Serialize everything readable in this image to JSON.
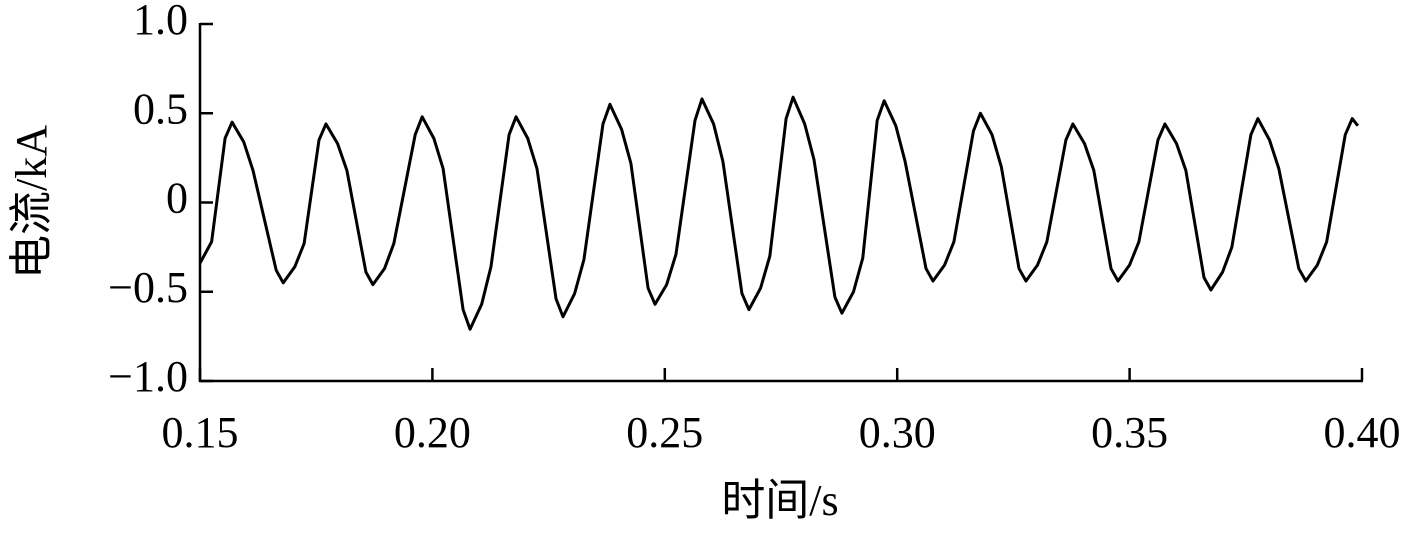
{
  "chart_data": {
    "type": "line",
    "x_label": "时间/s",
    "y_label": "电流/kA",
    "color": "#000000",
    "xlim": [
      0.15,
      0.4
    ],
    "xticks": [
      0.15,
      {
        "value": 0.2,
        "label": "0.20"
      },
      0.25,
      {
        "value": 0.3,
        "label": "0.30"
      },
      0.35,
      {
        "value": 0.4,
        "label": "0.40"
      }
    ],
    "ylim": [
      -1,
      1
    ],
    "yticks": [
      {
        "value": 1,
        "label": "1.0"
      },
      0.5,
      0,
      {
        "value": -0.5,
        "label": "−0.5"
      },
      {
        "value": -1,
        "label": "−1.0"
      }
    ],
    "grid": false,
    "x": [
      0.15,
      0.1525,
      0.1554,
      0.1569,
      0.1594,
      0.1614,
      0.1664,
      0.1679,
      0.1704,
      0.1724,
      0.1756,
      0.1771,
      0.1796,
      0.1816,
      0.1857,
      0.1872,
      0.1897,
      0.1917,
      0.1963,
      0.1978,
      0.2003,
      0.2023,
      0.2066,
      0.2081,
      0.2106,
      0.2126,
      0.2165,
      0.218,
      0.2205,
      0.2225,
      0.2266,
      0.2281,
      0.2306,
      0.2326,
      0.2367,
      0.2382,
      0.2407,
      0.2427,
      0.2464,
      0.2479,
      0.2504,
      0.2524,
      0.2565,
      0.258,
      0.2605,
      0.2625,
      0.2666,
      0.2681,
      0.2706,
      0.2726,
      0.2761,
      0.2776,
      0.2801,
      0.2821,
      0.2866,
      0.2881,
      0.2906,
      0.2926,
      0.2957,
      0.2972,
      0.2997,
      0.3017,
      0.3062,
      0.3077,
      0.3102,
      0.3122,
      0.3164,
      0.3179,
      0.3204,
      0.3224,
      0.3262,
      0.3277,
      0.3302,
      0.3322,
      0.3363,
      0.3378,
      0.3403,
      0.3423,
      0.346,
      0.3475,
      0.35,
      0.352,
      0.3561,
      0.3576,
      0.3601,
      0.3621,
      0.366,
      0.3675,
      0.37,
      0.372,
      0.3761,
      0.3776,
      0.3801,
      0.3821,
      0.3864,
      0.3879,
      0.3904,
      0.3924,
      0.3964,
      0.3979,
      0.3991
    ],
    "values": [
      -0.34,
      -0.22,
      0.36,
      0.45,
      0.34,
      0.18,
      -0.38,
      -0.45,
      -0.36,
      -0.23,
      0.35,
      0.44,
      0.33,
      0.18,
      -0.39,
      -0.46,
      -0.37,
      -0.23,
      0.38,
      0.48,
      0.36,
      0.19,
      -0.6,
      -0.71,
      -0.57,
      -0.36,
      0.38,
      0.48,
      0.36,
      0.19,
      -0.54,
      -0.64,
      -0.51,
      -0.32,
      0.44,
      0.55,
      0.41,
      0.22,
      -0.48,
      -0.57,
      -0.46,
      -0.29,
      0.46,
      0.58,
      0.44,
      0.23,
      -0.51,
      -0.6,
      -0.48,
      -0.3,
      0.47,
      0.59,
      0.44,
      0.24,
      -0.53,
      -0.62,
      -0.5,
      -0.31,
      0.46,
      0.57,
      0.43,
      0.23,
      -0.37,
      -0.44,
      -0.35,
      -0.22,
      0.4,
      0.5,
      0.38,
      0.2,
      -0.37,
      -0.44,
      -0.35,
      -0.22,
      0.35,
      0.44,
      0.33,
      0.18,
      -0.37,
      -0.44,
      -0.35,
      -0.22,
      0.35,
      0.44,
      0.33,
      0.18,
      -0.42,
      -0.49,
      -0.39,
      -0.25,
      0.38,
      0.47,
      0.35,
      0.19,
      -0.37,
      -0.44,
      -0.35,
      -0.22,
      0.38,
      0.47,
      0.43
    ]
  }
}
